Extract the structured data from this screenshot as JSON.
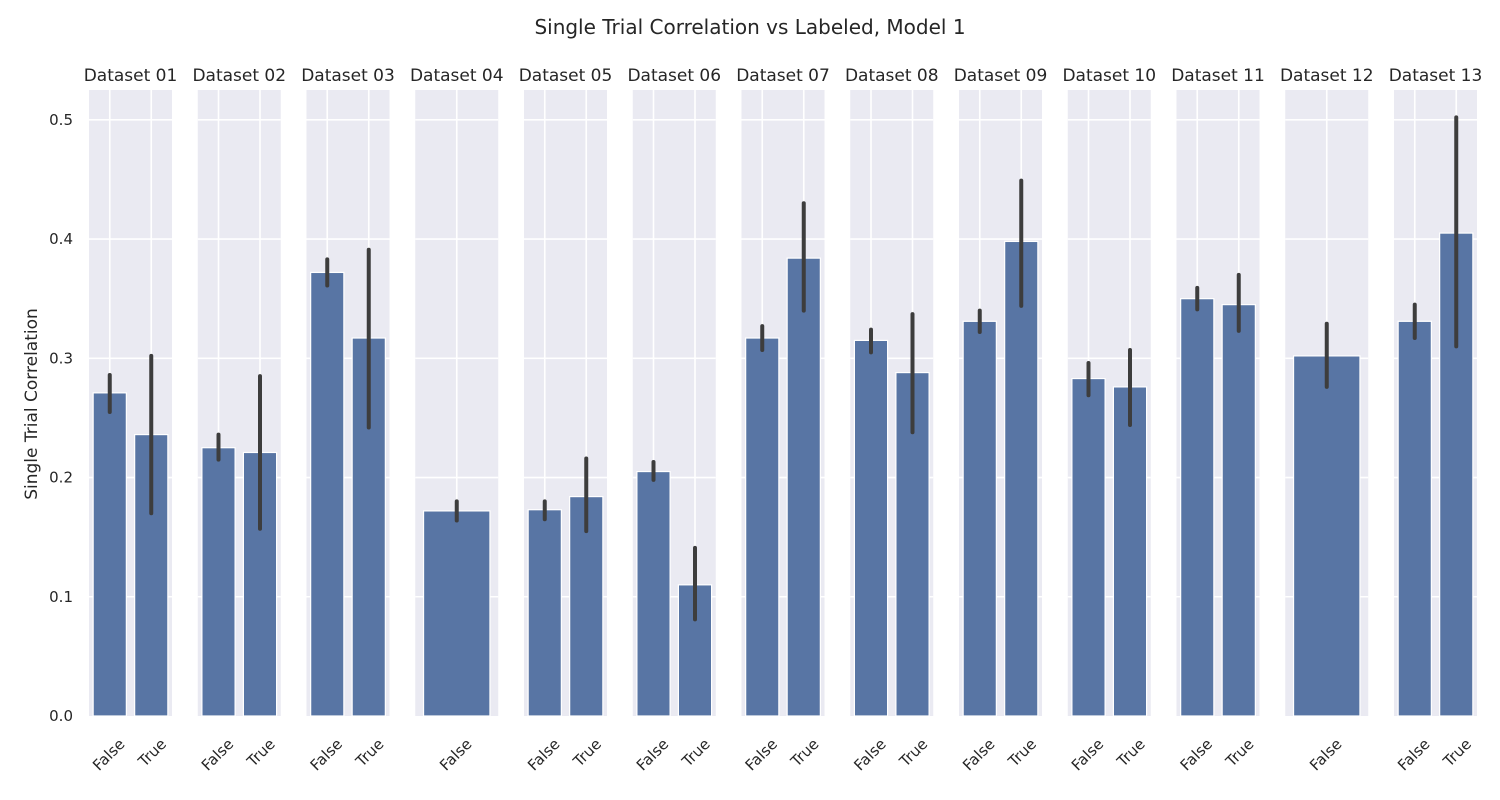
{
  "chart_data": {
    "type": "bar",
    "title": "Single Trial Correlation vs Labeled, Model 1",
    "ylabel": "Single Trial Correlation",
    "xlabel": "",
    "ylim": [
      0,
      0.525
    ],
    "yticks": [
      "0.0",
      "0.1",
      "0.2",
      "0.3",
      "0.4",
      "0.5"
    ],
    "ytick_values": [
      0,
      0.1,
      0.2,
      0.3,
      0.4,
      0.5
    ],
    "grid": true,
    "bar_color": "#5875a4",
    "errorbar_color": "#3d3d3d",
    "background_color": "#eaeaf2",
    "panels": [
      {
        "title": "Dataset 01",
        "bars": [
          {
            "label": "False",
            "value": 0.271,
            "err": [
              0.255,
              0.286
            ]
          },
          {
            "label": "True",
            "value": 0.236,
            "err": [
              0.17,
              0.302
            ]
          }
        ]
      },
      {
        "title": "Dataset 02",
        "bars": [
          {
            "label": "False",
            "value": 0.225,
            "err": [
              0.215,
              0.236
            ]
          },
          {
            "label": "True",
            "value": 0.221,
            "err": [
              0.157,
              0.285
            ]
          }
        ]
      },
      {
        "title": "Dataset 03",
        "bars": [
          {
            "label": "False",
            "value": 0.372,
            "err": [
              0.361,
              0.383
            ]
          },
          {
            "label": "True",
            "value": 0.317,
            "err": [
              0.242,
              0.391
            ]
          }
        ]
      },
      {
        "title": "Dataset 04",
        "bars": [
          {
            "label": "False",
            "value": 0.172,
            "err": [
              0.164,
              0.18
            ]
          }
        ]
      },
      {
        "title": "Dataset 05",
        "bars": [
          {
            "label": "False",
            "value": 0.173,
            "err": [
              0.165,
              0.18
            ]
          },
          {
            "label": "True",
            "value": 0.184,
            "err": [
              0.155,
              0.216
            ]
          }
        ]
      },
      {
        "title": "Dataset 06",
        "bars": [
          {
            "label": "False",
            "value": 0.205,
            "err": [
              0.198,
              0.213
            ]
          },
          {
            "label": "True",
            "value": 0.11,
            "err": [
              0.081,
              0.141
            ]
          }
        ]
      },
      {
        "title": "Dataset 07",
        "bars": [
          {
            "label": "False",
            "value": 0.317,
            "err": [
              0.307,
              0.327
            ]
          },
          {
            "label": "True",
            "value": 0.384,
            "err": [
              0.34,
              0.43
            ]
          }
        ]
      },
      {
        "title": "Dataset 08",
        "bars": [
          {
            "label": "False",
            "value": 0.315,
            "err": [
              0.305,
              0.324
            ]
          },
          {
            "label": "True",
            "value": 0.288,
            "err": [
              0.238,
              0.337
            ]
          }
        ]
      },
      {
        "title": "Dataset 09",
        "bars": [
          {
            "label": "False",
            "value": 0.331,
            "err": [
              0.322,
              0.34
            ]
          },
          {
            "label": "True",
            "value": 0.398,
            "err": [
              0.344,
              0.449
            ]
          }
        ]
      },
      {
        "title": "Dataset 10",
        "bars": [
          {
            "label": "False",
            "value": 0.283,
            "err": [
              0.269,
              0.296
            ]
          },
          {
            "label": "True",
            "value": 0.276,
            "err": [
              0.244,
              0.307
            ]
          }
        ]
      },
      {
        "title": "Dataset 11",
        "bars": [
          {
            "label": "False",
            "value": 0.35,
            "err": [
              0.341,
              0.359
            ]
          },
          {
            "label": "True",
            "value": 0.345,
            "err": [
              0.323,
              0.37
            ]
          }
        ]
      },
      {
        "title": "Dataset 12",
        "bars": [
          {
            "label": "False",
            "value": 0.302,
            "err": [
              0.276,
              0.329
            ]
          }
        ]
      },
      {
        "title": "Dataset 13",
        "bars": [
          {
            "label": "False",
            "value": 0.331,
            "err": [
              0.317,
              0.345
            ]
          },
          {
            "label": "True",
            "value": 0.405,
            "err": [
              0.31,
              0.502
            ]
          }
        ]
      }
    ]
  }
}
